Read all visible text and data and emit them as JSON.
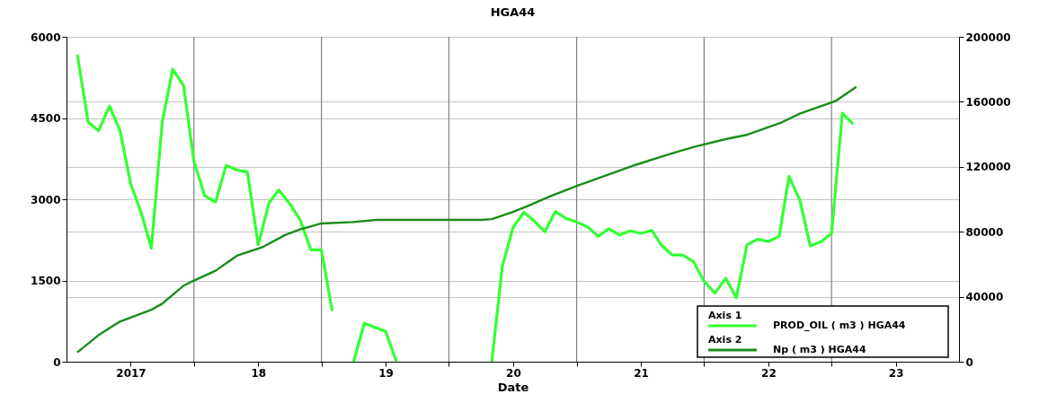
{
  "chart_data": {
    "type": "line",
    "title": "HGA44",
    "xlabel": "Date",
    "xlim": [
      "2016-07-01",
      "2023-07-01"
    ],
    "xticks": [
      {
        "value": "2017-01-01",
        "label": "2017"
      },
      {
        "value": "2017-07-01",
        "label": null
      },
      {
        "value": "2018-01-01",
        "label": "18"
      },
      {
        "value": "2018-07-01",
        "label": null
      },
      {
        "value": "2019-01-01",
        "label": "19"
      },
      {
        "value": "2019-07-01",
        "label": null
      },
      {
        "value": "2020-01-01",
        "label": "20"
      },
      {
        "value": "2020-07-01",
        "label": null
      },
      {
        "value": "2021-01-01",
        "label": "21"
      },
      {
        "value": "2021-07-01",
        "label": null
      },
      {
        "value": "2022-01-01",
        "label": "22"
      },
      {
        "value": "2022-07-01",
        "label": null
      },
      {
        "value": "2023-01-01",
        "label": "23"
      }
    ],
    "ylim": [
      0,
      6000
    ],
    "yticks": [
      0,
      1500,
      3000,
      4500,
      6000
    ],
    "y2lim": [
      0,
      200000
    ],
    "y2ticks": [
      0,
      40000,
      80000,
      120000,
      160000,
      200000
    ],
    "grid": true,
    "legend": "bottom right",
    "annotations": [
      "Axis 1",
      "Axis 2"
    ],
    "series": [
      {
        "name": "PROD_OIL ( m3 ) HGA44",
        "color": "#33ff33",
        "axis": "y",
        "x": [
          "2016-08-01",
          "2016-09-01",
          "2016-10-01",
          "2016-11-01",
          "2016-12-01",
          "2017-01-01",
          "2017-02-01",
          "2017-03-01",
          "2017-04-01",
          "2017-05-01",
          "2017-06-01",
          "2017-07-01",
          "2017-08-01",
          "2017-09-01",
          "2017-10-01",
          "2017-11-01",
          "2017-12-01",
          "2018-01-01",
          "2018-02-01",
          "2018-03-01",
          "2018-04-01",
          "2018-05-01",
          "2018-06-01",
          "2018-07-01",
          "2018-08-01",
          "2018-09-01",
          "2018-10-01",
          "2018-11-01",
          "2019-01-01",
          "2019-02-01",
          "2019-06-01",
          "2019-11-01",
          "2019-12-01",
          "2020-01-01",
          "2020-02-01",
          "2020-03-01",
          "2020-04-01",
          "2020-05-01",
          "2020-06-01",
          "2020-07-01",
          "2020-08-01",
          "2020-09-01",
          "2020-10-01",
          "2020-11-01",
          "2020-12-01",
          "2021-01-01",
          "2021-02-01",
          "2021-03-01",
          "2021-04-01",
          "2021-05-01",
          "2021-06-01",
          "2021-07-01",
          "2021-08-01",
          "2021-09-01",
          "2021-10-01",
          "2021-11-01",
          "2021-12-01",
          "2022-01-01",
          "2022-02-01",
          "2022-03-01",
          "2022-04-01",
          "2022-05-01",
          "2022-06-01",
          "2022-07-01",
          "2022-08-01",
          "2022-09-01"
        ],
        "values": [
          5670,
          4425,
          4265,
          4720,
          4275,
          3280,
          2730,
          2095,
          4415,
          5400,
          5105,
          3700,
          3060,
          2950,
          3625,
          3540,
          3500,
          2160,
          2935,
          3170,
          2920,
          2620,
          2065,
          2065,
          935,
          null,
          0,
          710,
          560,
          0,
          null,
          0,
          1760,
          2480,
          2760,
          2600,
          2400,
          2775,
          2645,
          2580,
          2490,
          2315,
          2455,
          2340,
          2415,
          2370,
          2425,
          2150,
          1970,
          1970,
          1845,
          1485,
          1265,
          1540,
          1180,
          2160,
          2260,
          2220,
          2315,
          3420,
          2990,
          2140,
          2215,
          2370,
          4590,
          4385
        ]
      },
      {
        "name": "Np ( m3 ) HGA44",
        "color": "#1a8c1a",
        "axis": "y2",
        "x": [
          "2016-08-01",
          "2016-10-01",
          "2016-12-01",
          "2017-03-01",
          "2017-04-01",
          "2017-06-01",
          "2017-07-01",
          "2017-09-01",
          "2017-11-01",
          "2018-01-15",
          "2018-03-20",
          "2018-05-01",
          "2018-07-01",
          "2018-10-01",
          "2018-12-05",
          "2019-10-01",
          "2019-11-01",
          "2019-12-28",
          "2020-02-10",
          "2020-04-18",
          "2020-07-05",
          "2020-12-15",
          "2021-03-10",
          "2021-06-05",
          "2021-09-01",
          "2021-11-03",
          "2022-02-10",
          "2022-04-01",
          "2022-07-12",
          "2022-09-10"
        ],
        "values": [
          5700,
          16400,
          24700,
          32000,
          35700,
          46800,
          49900,
          56000,
          65200,
          70700,
          78100,
          81400,
          85100,
          86000,
          87300,
          87300,
          87800,
          91900,
          95600,
          102000,
          108500,
          121000,
          126900,
          132400,
          137000,
          139800,
          147500,
          152700,
          160400,
          169200
        ]
      }
    ]
  }
}
